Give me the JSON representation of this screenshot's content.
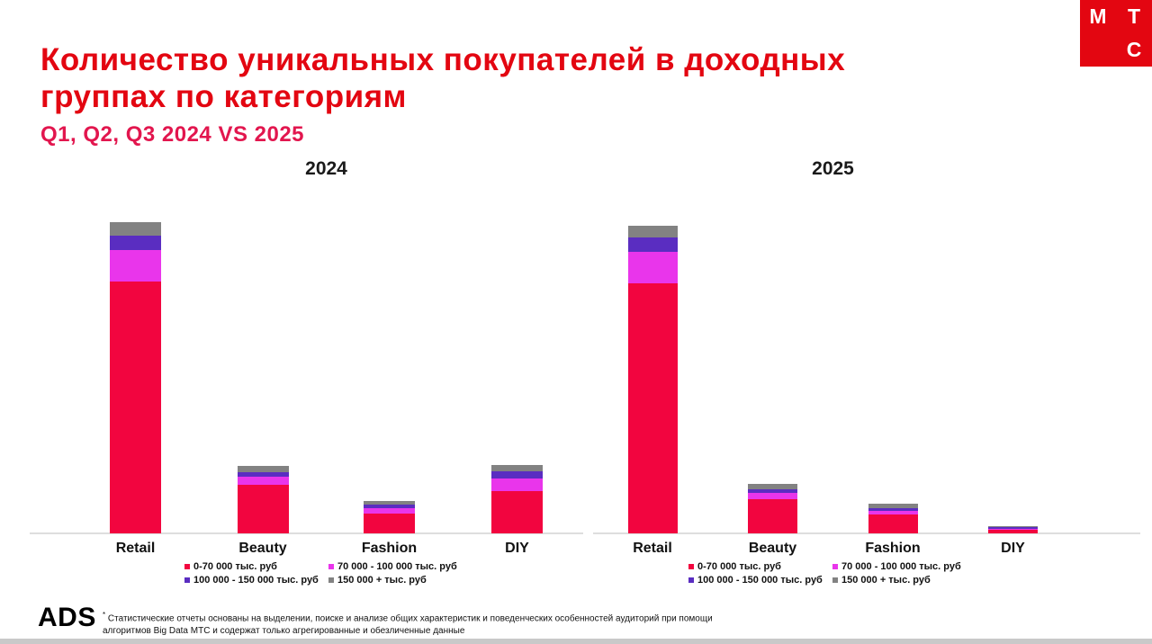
{
  "header": {
    "title_line1": "Количество уникальных покупателей в доходных",
    "title_line2": "группах по категориям",
    "subtitle": "Q1, Q2, Q3 2024 VS 2025"
  },
  "logo": {
    "letters": [
      "М",
      "Т",
      "С"
    ],
    "background": "#E30611",
    "text_color": "#ffffff"
  },
  "colors": {
    "red": "#F2053F",
    "magenta": "#E935EB",
    "purple": "#5A2DC1",
    "gray": "#828282",
    "title_red": "#E30611",
    "subtitle_pink": "#E2164E",
    "axis": "#DEDEDE"
  },
  "legend": {
    "items": [
      {
        "label": "0-70 000 тыс. руб",
        "color_key": "red"
      },
      {
        "label": "70 000 - 100 000 тыс. руб",
        "color_key": "magenta"
      },
      {
        "label": "100 000 - 150 000 тыс. руб",
        "color_key": "purple"
      },
      {
        "label": "150 000 + тыс. руб",
        "color_key": "gray"
      }
    ]
  },
  "chart_data": {
    "type": "bar",
    "stacked": true,
    "title": "Количество уникальных покупателей в доходных группах по категориям",
    "subtitle": "Q1, Q2, Q3 2024 VS 2025",
    "note": "No numeric y-axis is shown on the chart; values are relative stacked-segment heights estimated in screen pixels (Retail 2024 total ≈ 346).",
    "categories": [
      "Retail",
      "Beauty",
      "Fashion",
      "DIY"
    ],
    "legend_position": "bottom",
    "grid": false,
    "charts": [
      {
        "title": "2024",
        "series": [
          {
            "name": "0-70 000 тыс. руб",
            "color_key": "red",
            "values": [
              280,
              54,
              22,
              47
            ]
          },
          {
            "name": "70 000 - 100 000 тыс. руб",
            "color_key": "magenta",
            "values": [
              35,
              9,
              6,
              14
            ]
          },
          {
            "name": "100 000 - 150 000 тыс. руб",
            "color_key": "purple",
            "values": [
              16,
              5,
              4,
              8
            ]
          },
          {
            "name": "150 000 + тыс. руб",
            "color_key": "gray",
            "values": [
              15,
              7,
              4,
              7
            ]
          }
        ]
      },
      {
        "title": "2025",
        "series": [
          {
            "name": "0-70 000 тыс. руб",
            "color_key": "red",
            "values": [
              278,
              38,
              21,
              4
            ]
          },
          {
            "name": "70 000 - 100 000 тыс. руб",
            "color_key": "magenta",
            "values": [
              35,
              7,
              4,
              1.5
            ]
          },
          {
            "name": "100 000 - 150 000 тыс. руб",
            "color_key": "purple",
            "values": [
              16,
              4,
              3,
              2
            ]
          },
          {
            "name": "150 000 + тыс. руб",
            "color_key": "gray",
            "values": [
              13,
              6,
              5,
              0.5
            ]
          }
        ]
      }
    ]
  },
  "footer": {
    "brand": "ADS",
    "footnote_marker": "*",
    "note_line1": "Статистические отчеты основаны на выделении, поиске и анализе общих характеристик и поведенческих особенностей аудиторий при помощи",
    "note_line2": "алгоритмов Big Data МТС и содержат только агрегированные и обезличенные данные"
  }
}
